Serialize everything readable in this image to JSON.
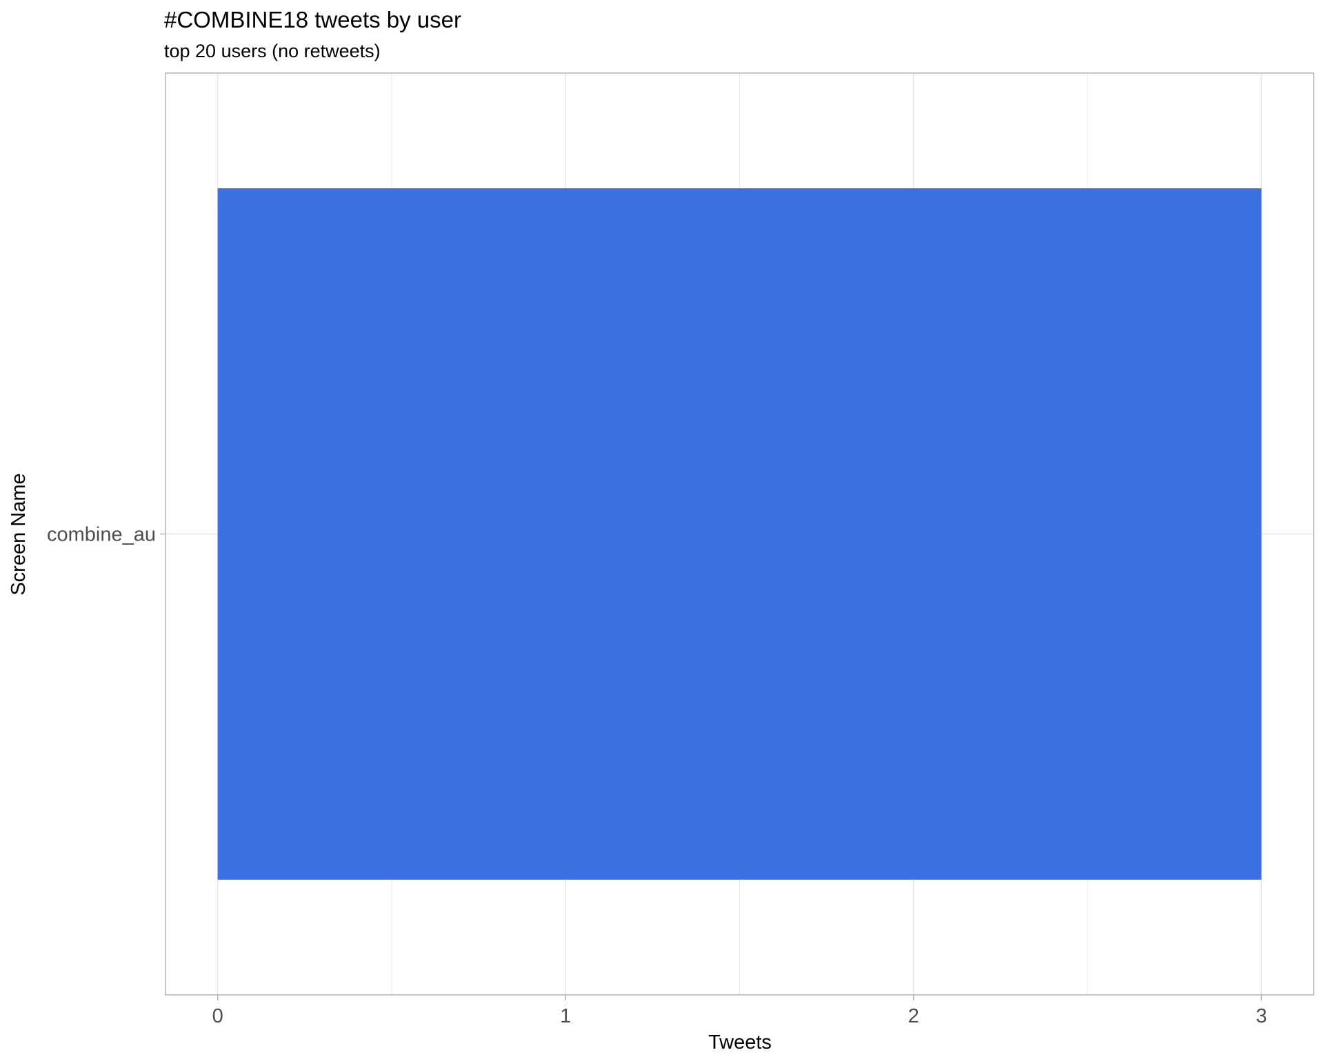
{
  "chart_data": {
    "type": "bar",
    "orientation": "horizontal",
    "title": "#COMBINE18 tweets by user",
    "subtitle": "top 20 users (no retweets)",
    "xlabel": "Tweets",
    "ylabel": "Screen Name",
    "categories": [
      "combine_au"
    ],
    "values": [
      3
    ],
    "xlim": [
      -0.15,
      3.15
    ],
    "xticks": [
      0,
      1,
      2,
      3
    ],
    "xtick_labels": [
      "0",
      "1",
      "2",
      "3"
    ],
    "grid": true,
    "legend": "none",
    "colors": {
      "bar": "#3C6FE0",
      "grid": "#e6e6e6",
      "panel_border": "#b3b3b3",
      "tick_text": "#4d4d4d"
    }
  }
}
